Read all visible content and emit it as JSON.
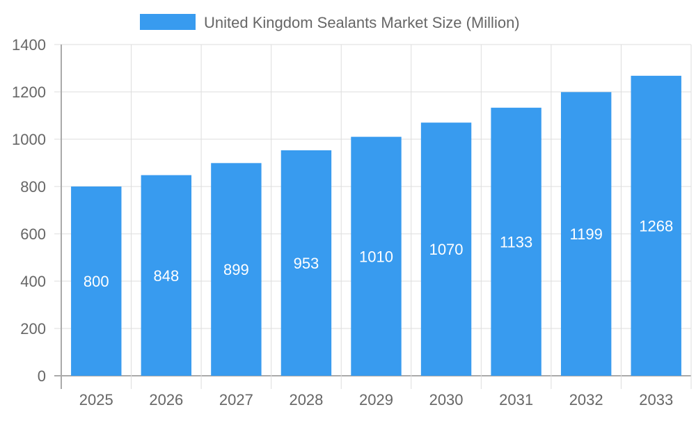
{
  "chart_data": {
    "type": "bar",
    "title": "",
    "xlabel": "",
    "ylabel": "",
    "legend": {
      "position": "top",
      "entries": [
        "United Kingdom Sealants Market Size (Million)"
      ]
    },
    "categories": [
      "2025",
      "2026",
      "2027",
      "2028",
      "2029",
      "2030",
      "2031",
      "2032",
      "2033"
    ],
    "series": [
      {
        "name": "United Kingdom Sealants Market Size (Million)",
        "values": [
          800,
          848,
          899,
          953,
          1010,
          1070,
          1133,
          1199,
          1268
        ],
        "color": "#389bef"
      }
    ],
    "ylim": [
      0,
      1400
    ],
    "yticks": [
      0,
      200,
      400,
      600,
      800,
      1000,
      1200,
      1400
    ],
    "grid": true,
    "data_labels": true
  }
}
